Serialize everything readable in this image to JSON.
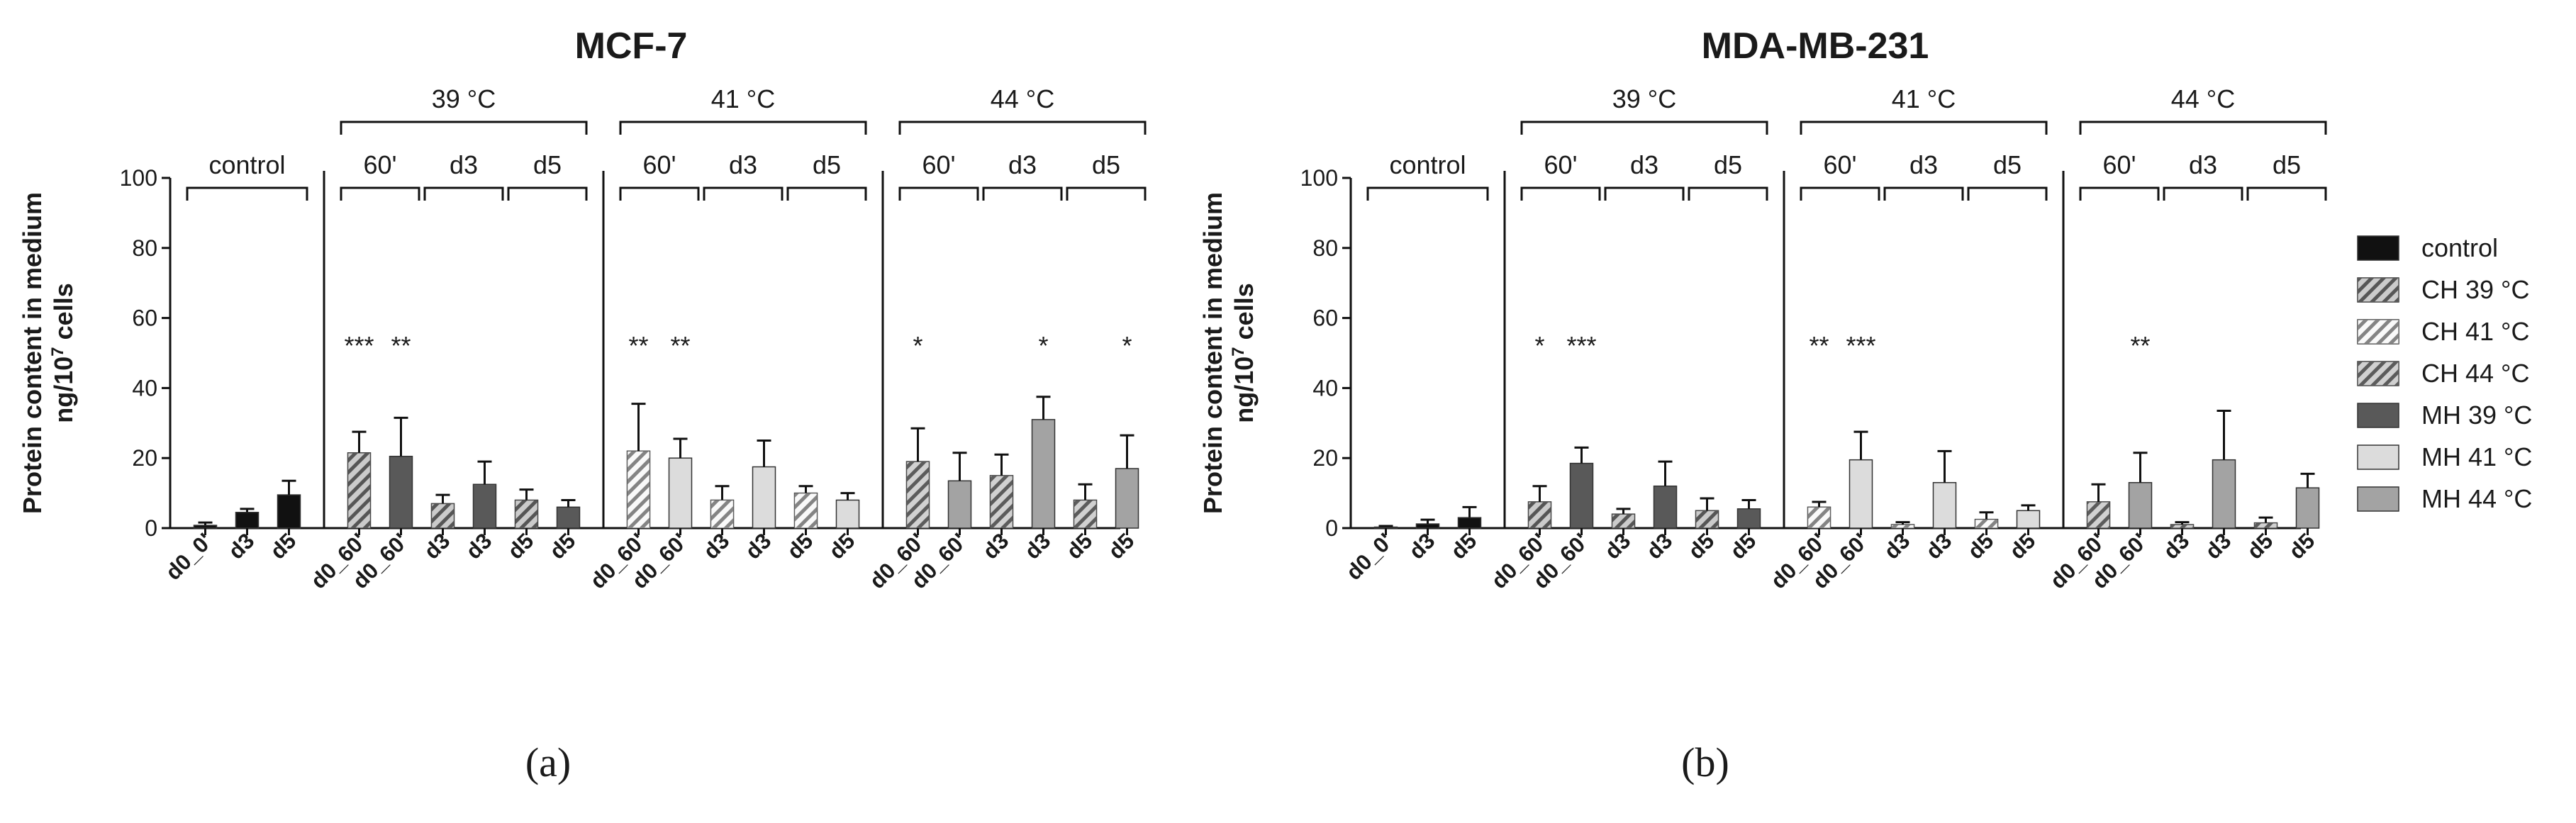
{
  "chart_data": [
    {
      "type": "bar",
      "title": "MCF-7",
      "ylabel_line1": "Protein content in medium",
      "ylabel_line2_base": "ng/10",
      "ylabel_line2_sup": "7",
      "ylabel_line2_suffix": " cells",
      "ylim": [
        0,
        100
      ],
      "yticks": [
        "0",
        "20",
        "40",
        "60",
        "80",
        "100"
      ],
      "panel_label": "(a)",
      "sections": [
        {
          "temp_label": "",
          "subgroups": [
            {
              "label": "control",
              "bars": [
                {
                  "x": "d0_0'",
                  "value": 0.8,
                  "err": 0.8,
                  "series": "control",
                  "star": ""
                },
                {
                  "x": "d3",
                  "value": 4.5,
                  "err": 1.0,
                  "series": "control",
                  "star": ""
                },
                {
                  "x": "d5",
                  "value": 9.5,
                  "err": 4.0,
                  "series": "control",
                  "star": ""
                }
              ]
            }
          ]
        },
        {
          "temp_label": "39 °C",
          "subgroups": [
            {
              "label": "60'",
              "bars": [
                {
                  "x": "d0_60'",
                  "value": 21.5,
                  "err": 6.0,
                  "series": "CH 39 °C",
                  "star": "***"
                },
                {
                  "x": "d0_60'",
                  "value": 20.5,
                  "err": 11.0,
                  "series": "MH 39 °C",
                  "star": "**"
                }
              ]
            },
            {
              "label": "d3",
              "bars": [
                {
                  "x": "d3",
                  "value": 7.0,
                  "err": 2.5,
                  "series": "CH 39 °C",
                  "star": ""
                },
                {
                  "x": "d3",
                  "value": 12.5,
                  "err": 6.5,
                  "series": "MH 39 °C",
                  "star": ""
                }
              ]
            },
            {
              "label": "d5",
              "bars": [
                {
                  "x": "d5",
                  "value": 8.0,
                  "err": 3.0,
                  "series": "CH 39 °C",
                  "star": ""
                },
                {
                  "x": "d5",
                  "value": 6.0,
                  "err": 2.0,
                  "series": "MH 39 °C",
                  "star": ""
                }
              ]
            }
          ]
        },
        {
          "temp_label": "41 °C",
          "subgroups": [
            {
              "label": "60'",
              "bars": [
                {
                  "x": "d0_60'",
                  "value": 22.0,
                  "err": 13.5,
                  "series": "CH 41 °C",
                  "star": "**"
                },
                {
                  "x": "d0_60'",
                  "value": 20.0,
                  "err": 5.5,
                  "series": "MH 41 °C",
                  "star": "**"
                }
              ]
            },
            {
              "label": "d3",
              "bars": [
                {
                  "x": "d3",
                  "value": 8.0,
                  "err": 4.0,
                  "series": "CH 41 °C",
                  "star": ""
                },
                {
                  "x": "d3",
                  "value": 17.5,
                  "err": 7.5,
                  "series": "MH 41 °C",
                  "star": ""
                }
              ]
            },
            {
              "label": "d5",
              "bars": [
                {
                  "x": "d5",
                  "value": 10.0,
                  "err": 2.0,
                  "series": "CH 41 °C",
                  "star": ""
                },
                {
                  "x": "d5",
                  "value": 8.0,
                  "err": 2.0,
                  "series": "MH 41 °C",
                  "star": ""
                }
              ]
            }
          ]
        },
        {
          "temp_label": "44 °C",
          "subgroups": [
            {
              "label": "60'",
              "bars": [
                {
                  "x": "d0_60'",
                  "value": 19.0,
                  "err": 9.5,
                  "series": "CH 44 °C",
                  "star": "*"
                },
                {
                  "x": "d0_60'",
                  "value": 13.5,
                  "err": 8.0,
                  "series": "MH 44 °C",
                  "star": ""
                }
              ]
            },
            {
              "label": "d3",
              "bars": [
                {
                  "x": "d3",
                  "value": 15.0,
                  "err": 6.0,
                  "series": "CH 44 °C",
                  "star": ""
                },
                {
                  "x": "d3",
                  "value": 31.0,
                  "err": 6.5,
                  "series": "MH 44 °C",
                  "star": "*"
                }
              ]
            },
            {
              "label": "d5",
              "bars": [
                {
                  "x": "d5",
                  "value": 8.0,
                  "err": 4.5,
                  "series": "CH 44 °C",
                  "star": ""
                },
                {
                  "x": "d5",
                  "value": 17.0,
                  "err": 9.5,
                  "series": "MH 44 °C",
                  "star": "*"
                }
              ]
            }
          ]
        }
      ]
    },
    {
      "type": "bar",
      "title": "MDA-MB-231",
      "ylabel_line1": "Protein content in medium",
      "ylabel_line2_base": "ng/10",
      "ylabel_line2_sup": "7",
      "ylabel_line2_suffix": " cells",
      "ylim": [
        0,
        100
      ],
      "yticks": [
        "0",
        "20",
        "40",
        "60",
        "80",
        "100"
      ],
      "panel_label": "(b)",
      "sections": [
        {
          "temp_label": "",
          "subgroups": [
            {
              "label": "control",
              "bars": [
                {
                  "x": "d0_0'",
                  "value": 0.3,
                  "err": 0.3,
                  "series": "control",
                  "star": ""
                },
                {
                  "x": "d3",
                  "value": 1.2,
                  "err": 1.2,
                  "series": "control",
                  "star": ""
                },
                {
                  "x": "d5",
                  "value": 3.0,
                  "err": 3.0,
                  "series": "control",
                  "star": ""
                }
              ]
            }
          ]
        },
        {
          "temp_label": "39 °C",
          "subgroups": [
            {
              "label": "60'",
              "bars": [
                {
                  "x": "d0_60'",
                  "value": 7.5,
                  "err": 4.5,
                  "series": "CH 39 °C",
                  "star": "*"
                },
                {
                  "x": "d0_60'",
                  "value": 18.5,
                  "err": 4.5,
                  "series": "MH 39 °C",
                  "star": "***"
                }
              ]
            },
            {
              "label": "d3",
              "bars": [
                {
                  "x": "d3",
                  "value": 4.0,
                  "err": 1.5,
                  "series": "CH 39 °C",
                  "star": ""
                },
                {
                  "x": "d3",
                  "value": 12.0,
                  "err": 7.0,
                  "series": "MH 39 °C",
                  "star": ""
                }
              ]
            },
            {
              "label": "d5",
              "bars": [
                {
                  "x": "d5",
                  "value": 5.0,
                  "err": 3.5,
                  "series": "CH 39 °C",
                  "star": ""
                },
                {
                  "x": "d5",
                  "value": 5.5,
                  "err": 2.5,
                  "series": "MH 39 °C",
                  "star": ""
                }
              ]
            }
          ]
        },
        {
          "temp_label": "41 °C",
          "subgroups": [
            {
              "label": "60'",
              "bars": [
                {
                  "x": "d0_60'",
                  "value": 6.0,
                  "err": 1.5,
                  "series": "CH 41 °C",
                  "star": "**"
                },
                {
                  "x": "d0_60'",
                  "value": 19.5,
                  "err": 8.0,
                  "series": "MH 41 °C",
                  "star": "***"
                }
              ]
            },
            {
              "label": "d3",
              "bars": [
                {
                  "x": "d3",
                  "value": 1.0,
                  "err": 0.7,
                  "series": "CH 41 °C",
                  "star": ""
                },
                {
                  "x": "d3",
                  "value": 13.0,
                  "err": 9.0,
                  "series": "MH 41 °C",
                  "star": ""
                }
              ]
            },
            {
              "label": "d5",
              "bars": [
                {
                  "x": "d5",
                  "value": 2.5,
                  "err": 2.0,
                  "series": "CH 41 °C",
                  "star": ""
                },
                {
                  "x": "d5",
                  "value": 5.0,
                  "err": 1.5,
                  "series": "MH 41 °C",
                  "star": ""
                }
              ]
            }
          ]
        },
        {
          "temp_label": "44 °C",
          "subgroups": [
            {
              "label": "60'",
              "bars": [
                {
                  "x": "d0_60'",
                  "value": 7.5,
                  "err": 5.0,
                  "series": "CH 44 °C",
                  "star": ""
                },
                {
                  "x": "d0_60'",
                  "value": 13.0,
                  "err": 8.5,
                  "series": "MH 44 °C",
                  "star": "**"
                }
              ]
            },
            {
              "label": "d3",
              "bars": [
                {
                  "x": "d3",
                  "value": 1.0,
                  "err": 0.7,
                  "series": "CH 44 °C",
                  "star": ""
                },
                {
                  "x": "d3",
                  "value": 19.5,
                  "err": 14.0,
                  "series": "MH 44 °C",
                  "star": ""
                }
              ]
            },
            {
              "label": "d5",
              "bars": [
                {
                  "x": "d5",
                  "value": 1.5,
                  "err": 1.5,
                  "series": "CH 44 °C",
                  "star": ""
                },
                {
                  "x": "d5",
                  "value": 11.5,
                  "err": 4.0,
                  "series": "MH 44 °C",
                  "star": ""
                }
              ]
            }
          ]
        }
      ]
    }
  ],
  "legend": [
    {
      "label": "control",
      "fill": "#111111",
      "pattern": "none"
    },
    {
      "label": "CH 39 °C",
      "fill": "#8c8c8c",
      "pattern": "hatch"
    },
    {
      "label": "CH 41 °C",
      "fill": "#f2f2f2",
      "pattern": "hatch"
    },
    {
      "label": "CH 44 °C",
      "fill": "#9a9a9a",
      "pattern": "hatch"
    },
    {
      "label": "MH 39 °C",
      "fill": "#595959",
      "pattern": "none"
    },
    {
      "label": "MH 41 °C",
      "fill": "#dcdcdc",
      "pattern": "none"
    },
    {
      "label": "MH 44 °C",
      "fill": "#a3a3a3",
      "pattern": "none"
    }
  ]
}
